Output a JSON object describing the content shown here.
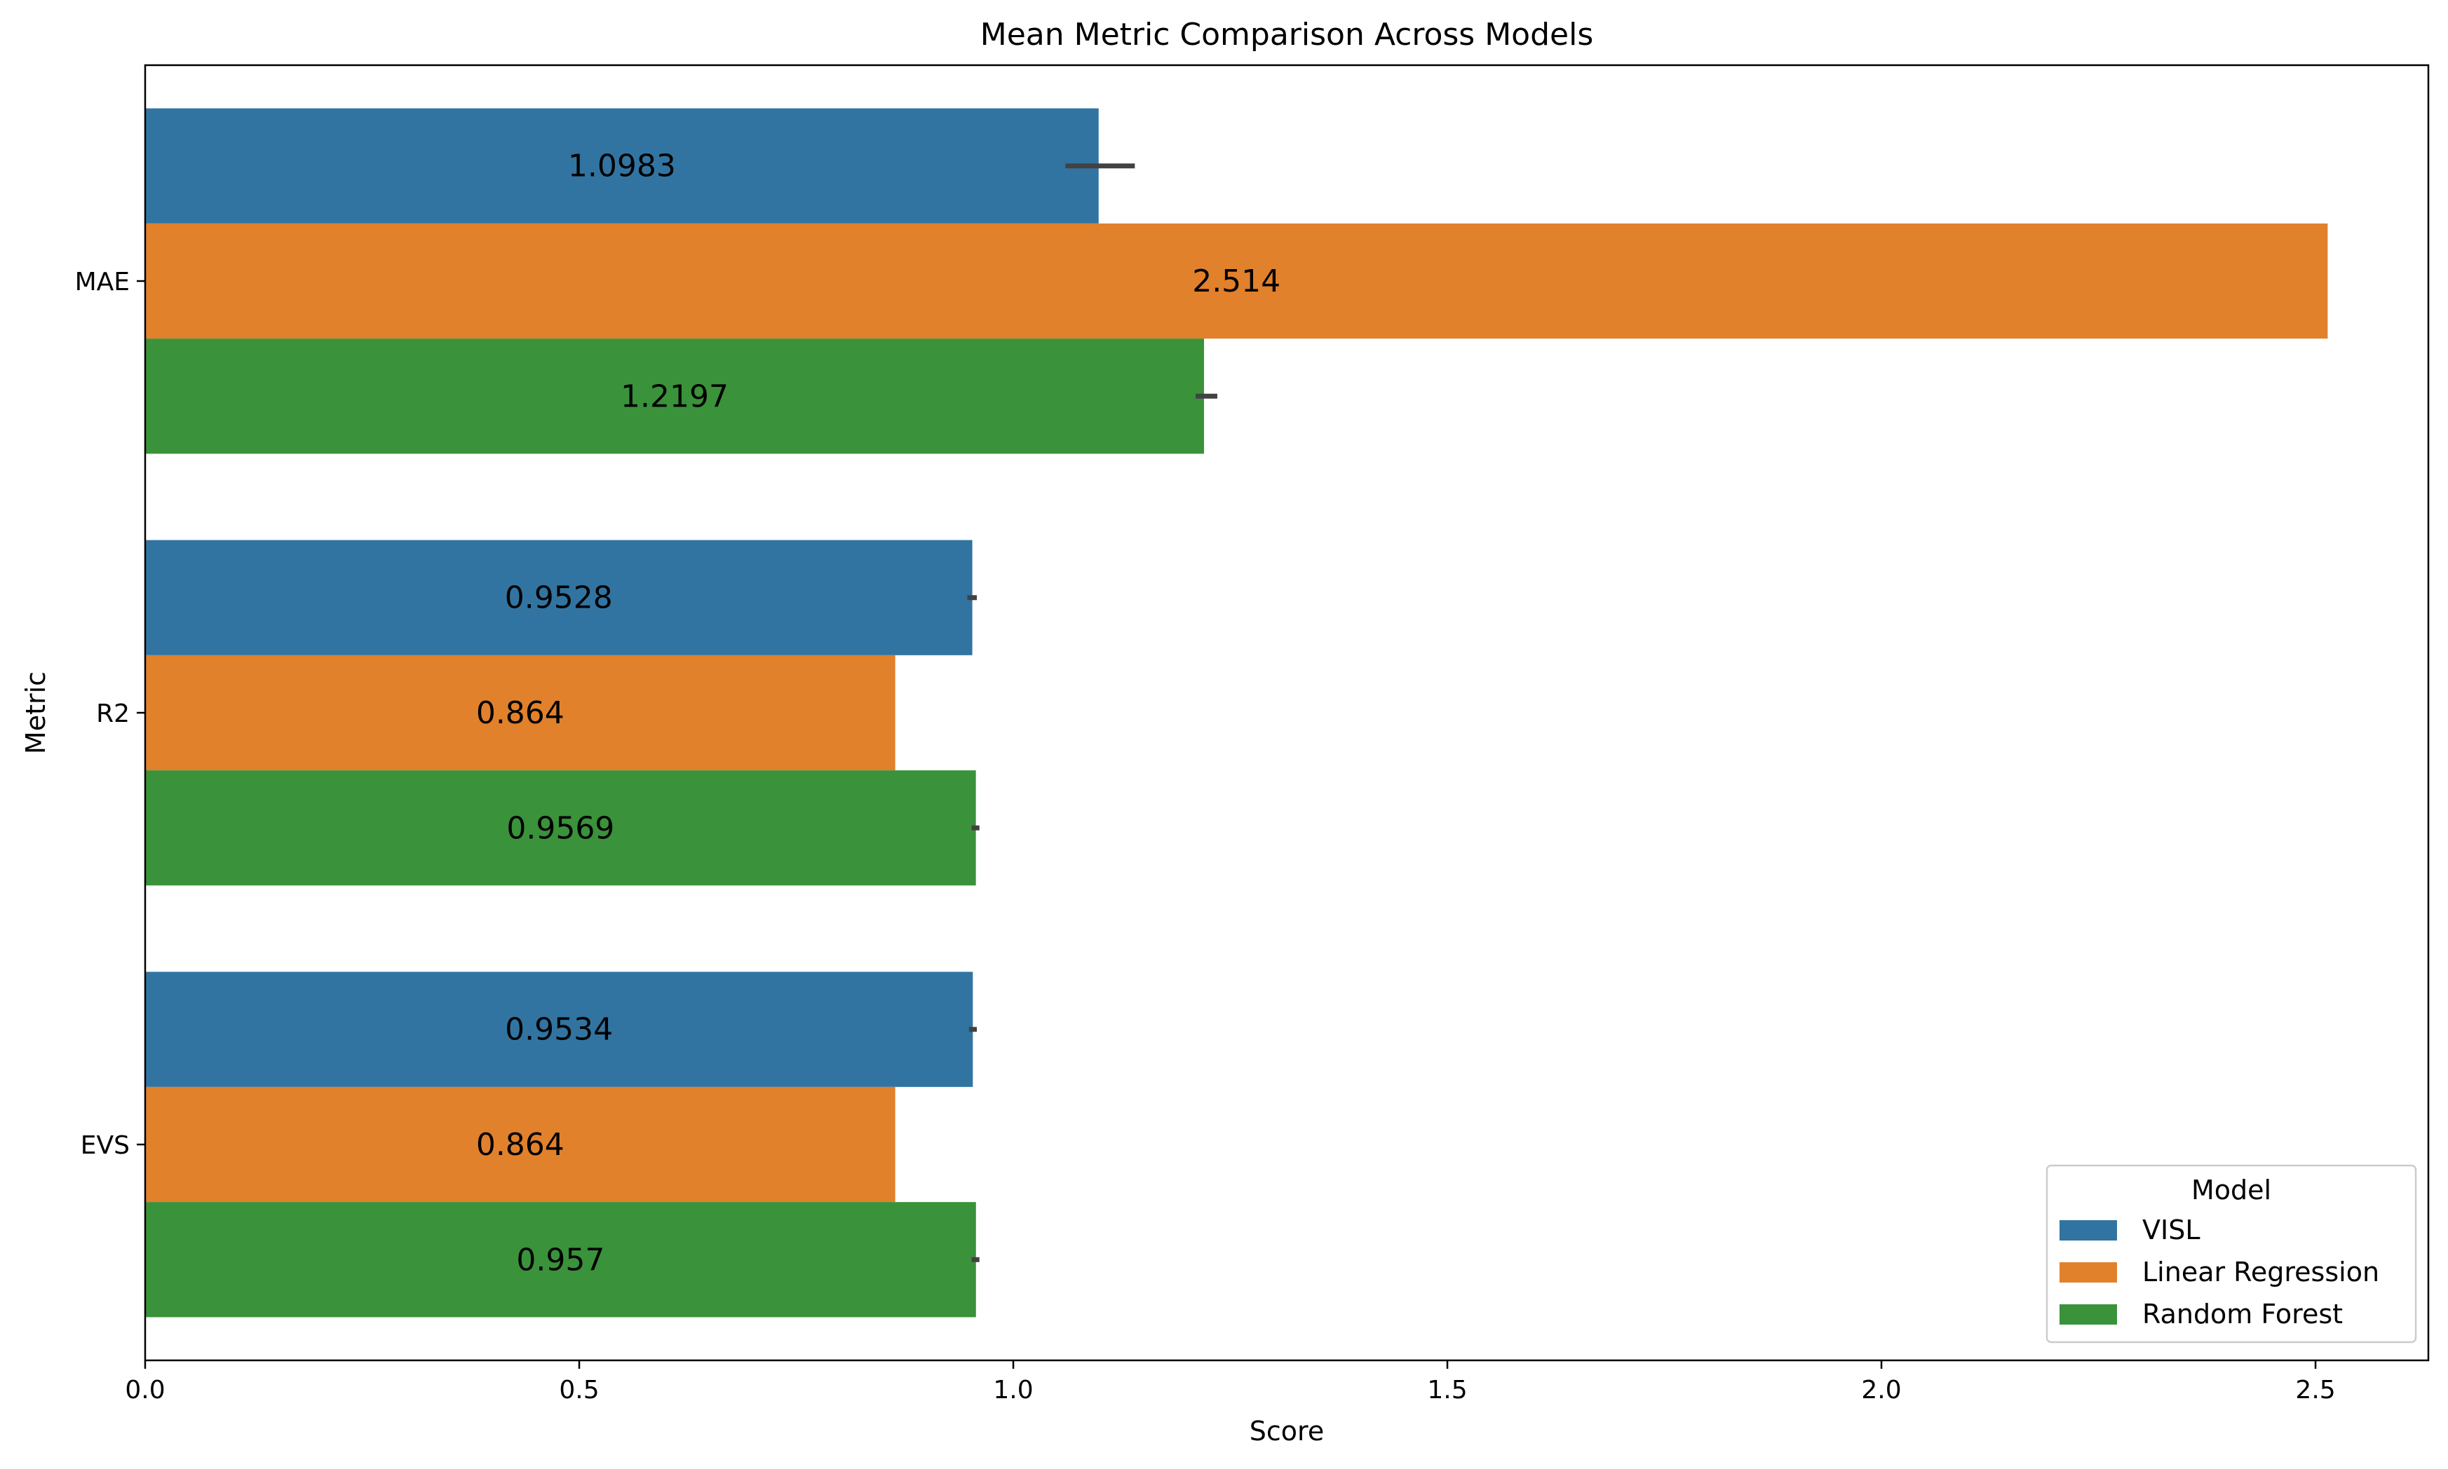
{
  "chart_data": {
    "type": "bar",
    "orientation": "horizontal",
    "title": "Mean Metric Comparison Across Models",
    "xlabel": "Score",
    "ylabel": "Metric",
    "categories": [
      "MAE",
      "R2",
      "EVS"
    ],
    "xlim": [
      0,
      2.63
    ],
    "xticks": [
      0.0,
      0.5,
      1.0,
      1.5,
      2.0,
      2.5
    ],
    "xtick_labels": [
      "0.0",
      "0.5",
      "1.0",
      "1.5",
      "2.0",
      "2.5"
    ],
    "grid": false,
    "legend": {
      "title": "Model",
      "placement": "lower-right"
    },
    "series": [
      {
        "name": "VISL",
        "color": "#3274a1",
        "values": [
          1.0983,
          0.9528,
          0.9534
        ],
        "labels": [
          "1.0983",
          "0.9528",
          "0.9534"
        ],
        "error": [
          [
            1.06,
            1.14
          ],
          [
            0.947,
            0.958
          ],
          [
            0.949,
            0.958
          ]
        ]
      },
      {
        "name": "Linear Regression",
        "color": "#e1812c",
        "values": [
          2.514,
          0.864,
          0.864
        ],
        "labels": [
          "2.514",
          "0.864",
          "0.864"
        ],
        "error": null
      },
      {
        "name": "Random Forest",
        "color": "#3a923a",
        "values": [
          1.2197,
          0.9569,
          0.957
        ],
        "labels": [
          "1.2197",
          "0.9569",
          "0.957"
        ],
        "error": [
          [
            1.21,
            1.235
          ],
          [
            0.952,
            0.961
          ],
          [
            0.952,
            0.961
          ]
        ]
      }
    ]
  }
}
